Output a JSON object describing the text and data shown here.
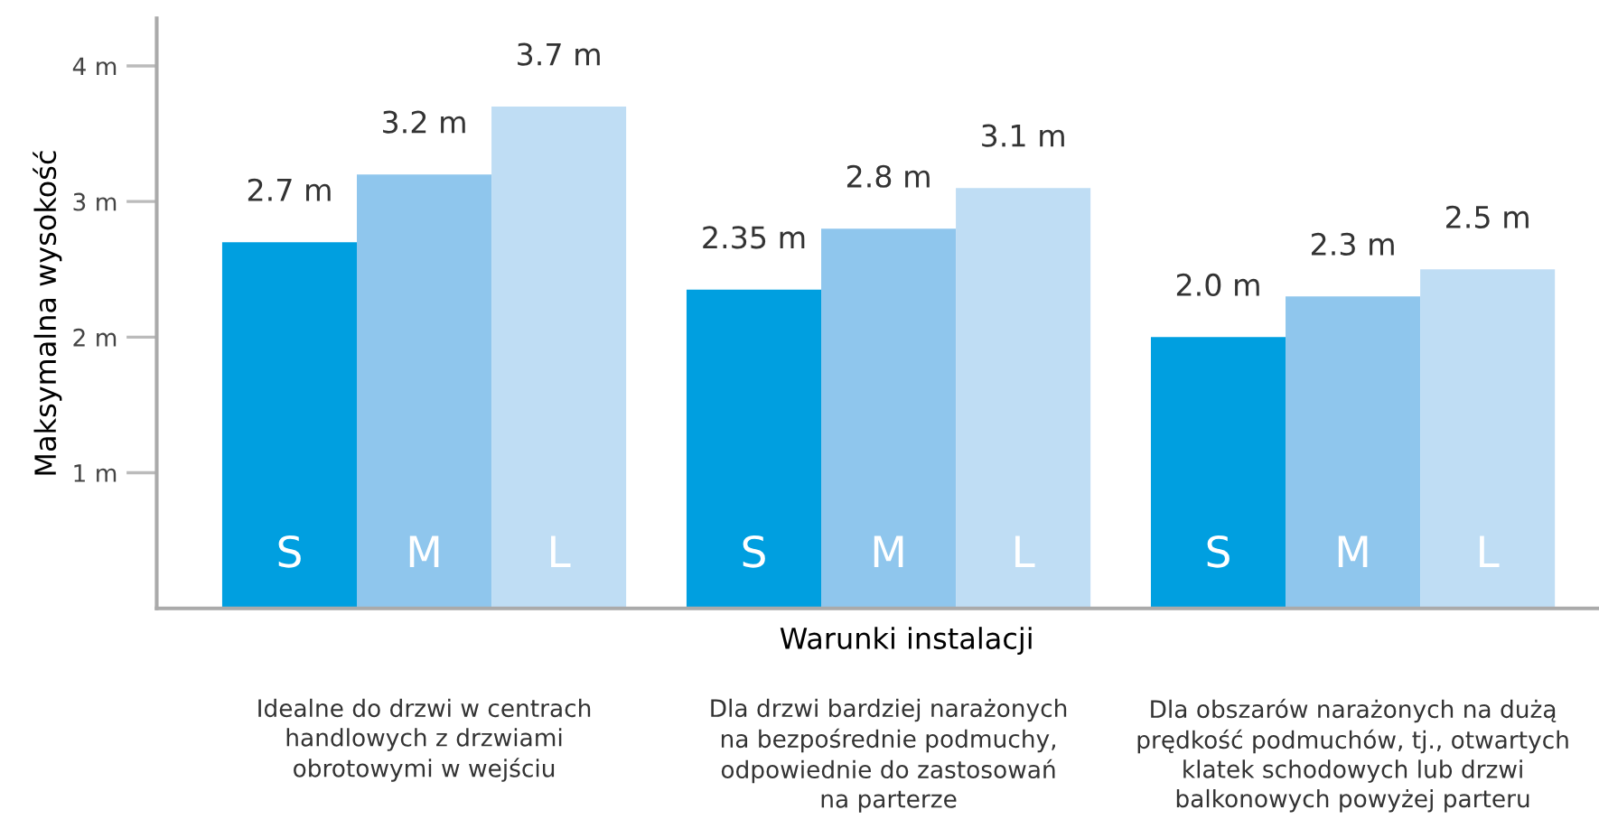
{
  "chart_data": {
    "type": "bar",
    "ylabel": "Maksymalna wysokość",
    "xlabel": "Warunki instalacji",
    "categories": [
      "Idealne do drzwi w centrach\nhandlowych z drzwiami\nobrotowymi w wejściu",
      "Dla drzwi bardziej narażonych\nna bezpośrednie podmuchy,\nodpowiednie do zastosowań\nna parterze",
      "Dla obszarów narażonych na dużą\nprędkość podmuchów, tj., otwartych\nklatek schodowych lub drzwi\nbalkonowych powyżej parteru"
    ],
    "series": [
      {
        "name": "S",
        "color": "#009fe0",
        "values": [
          2.7,
          2.35,
          2.0
        ],
        "value_labels": [
          "2.7 m",
          "2.35 m",
          "2.0 m"
        ]
      },
      {
        "name": "M",
        "color": "#8fc6ed",
        "values": [
          3.2,
          2.8,
          2.3
        ],
        "value_labels": [
          "3.2 m",
          "2.8 m",
          "2.3 m"
        ]
      },
      {
        "name": "L",
        "color": "#bfddf4",
        "values": [
          3.7,
          3.1,
          2.5
        ],
        "value_labels": [
          "3.7 m",
          "3.1 m",
          "2.5 m"
        ]
      }
    ],
    "ylim": [
      0,
      4.35
    ],
    "yticks": [
      {
        "value": 1,
        "label": "1 m"
      },
      {
        "value": 2,
        "label": "2 m"
      },
      {
        "value": 3,
        "label": "3 m"
      },
      {
        "value": 4,
        "label": "4 m"
      }
    ],
    "grid": false,
    "legend": false
  }
}
